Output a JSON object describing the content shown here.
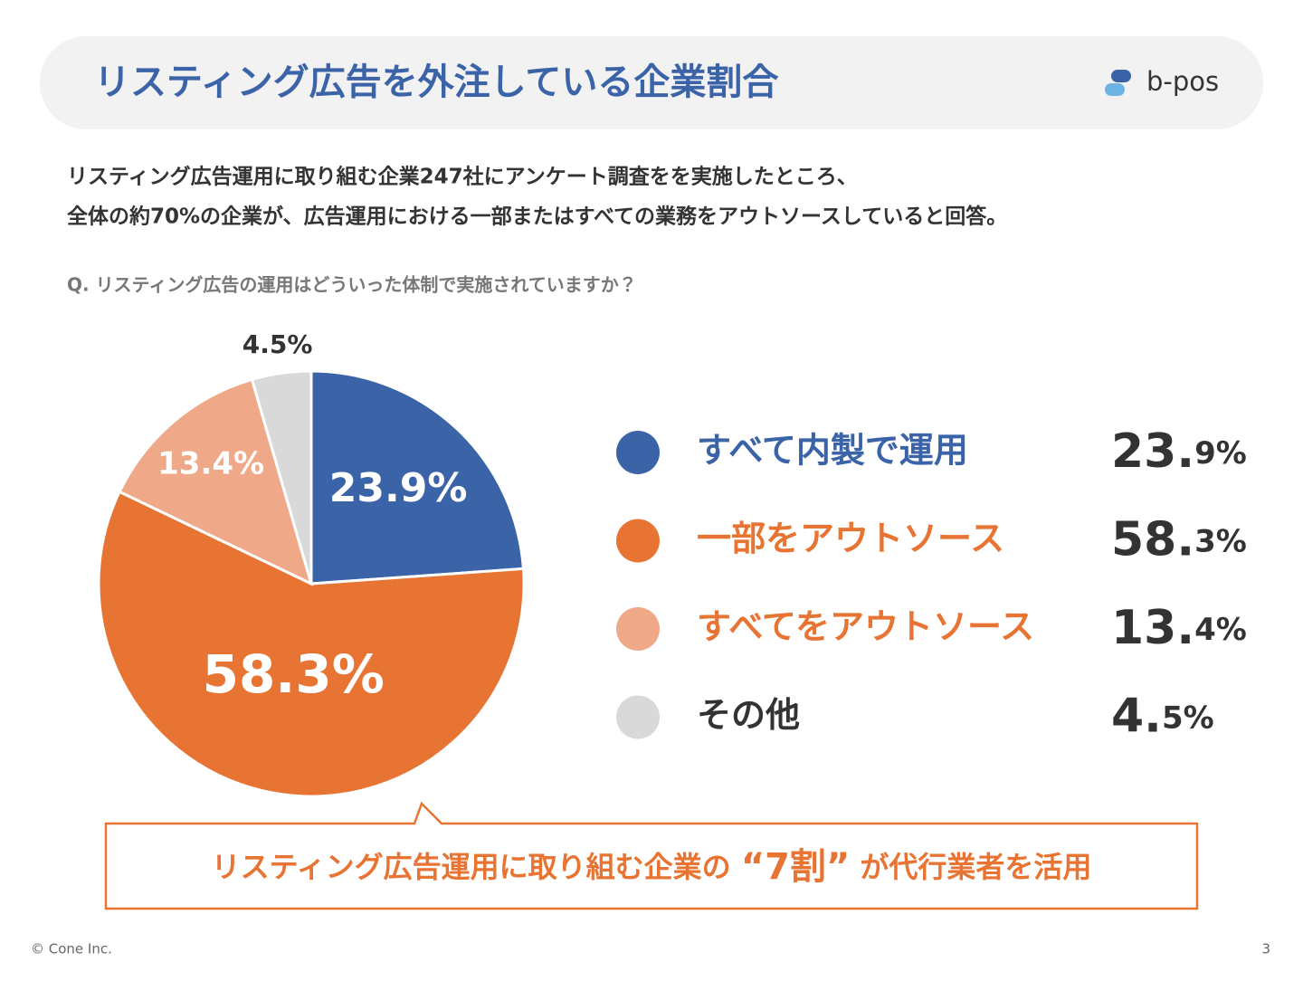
{
  "header": {
    "title": "リスティング広告を外注している企業割合",
    "logo": "b-pos"
  },
  "description": [
    "リスティング広告運用に取り組む企業247社にアンケート調査をを実施したところ、",
    "全体の約70%の企業が、広告運用における一部またはすべての業務をアウトソースしていると回答。"
  ],
  "question": "Q. リスティング広告の運用はどういった体制で実施されていますか？",
  "chart_data": {
    "type": "pie",
    "categories": [
      "すべて内製で運用",
      "一部をアウトソース",
      "すべてをアウトソース",
      "その他"
    ],
    "values": [
      23.9,
      58.3,
      13.4,
      4.5
    ],
    "value_labels": [
      "23.9%",
      "58.3%",
      "13.4%",
      "4.5%"
    ],
    "colors": [
      "#3b63a8",
      "#e87433",
      "#f0a988",
      "#d9d9d9"
    ],
    "label_colors": [
      "#ffffff",
      "#ffffff",
      "#ffffff",
      "#333333"
    ],
    "legend_text_colors": [
      "#3b63a8",
      "#e87433",
      "#e87433",
      "#333333"
    ]
  },
  "callout": [
    "リスティング広告運用に取り組む企業の ",
    "“7割”",
    " が代行業者を活用"
  ],
  "footer": {
    "copyright": "© Cone Inc.",
    "page_number": 3
  }
}
